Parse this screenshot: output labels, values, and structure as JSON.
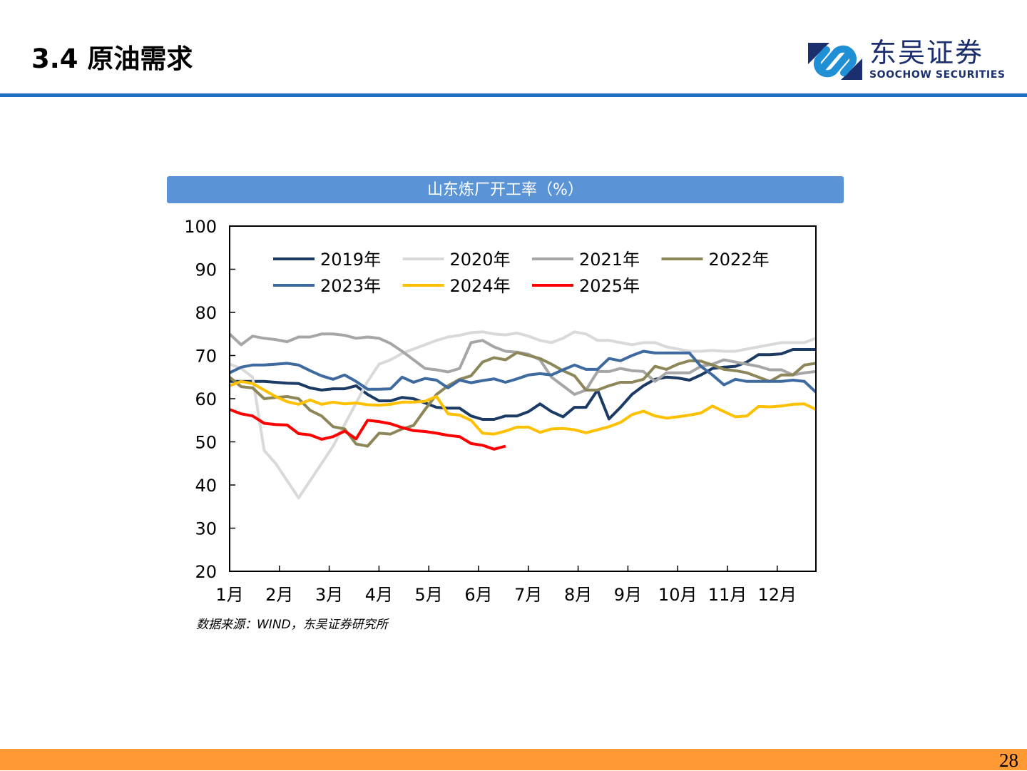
{
  "header": {
    "title": "3.4 原油需求",
    "logo_cn": "东吴证券",
    "logo_en": "SOOCHOW SECURITIES",
    "brand_color": "#1b2f6e",
    "accent_color": "#1f6fc0"
  },
  "chart_data": {
    "type": "line",
    "title": "山东炼厂开工率（%）",
    "xlabel": "",
    "ylabel": "",
    "ylim": [
      20,
      100
    ],
    "yticks": [
      "100",
      "90",
      "80",
      "70",
      "60",
      "50",
      "40",
      "30",
      "20"
    ],
    "xticks": [
      "1月",
      "2月",
      "3月",
      "4月",
      "5月",
      "6月",
      "7月",
      "8月",
      "9月",
      "10月",
      "11月",
      "12月"
    ],
    "x_unit": "week of year (1-52)",
    "legend": "top, inside plot",
    "grid": false,
    "series": [
      {
        "name": "2019年",
        "color": "#1b3a64",
        "values": [
          64,
          64,
          64,
          64,
          63.8,
          63.6,
          63.5,
          62.5,
          62,
          62.3,
          62.3,
          63,
          61,
          59.5,
          59.5,
          60.3,
          60,
          59,
          58,
          57.8,
          57.8,
          56,
          55.2,
          55.2,
          56,
          56,
          57,
          58.8,
          57,
          55.8,
          58,
          58,
          62,
          55.3,
          58,
          61,
          63,
          64.5,
          65,
          64.8,
          64.3,
          65.5,
          67,
          67.3,
          67.5,
          68.5,
          70.2,
          70.2,
          70.4,
          71.4,
          71.4,
          71.4
        ]
      },
      {
        "name": "2020年",
        "color": "#d9d9d9",
        "values": [
          68,
          67,
          65,
          48,
          45,
          41,
          37,
          41,
          45,
          49,
          54,
          59,
          64,
          68,
          69,
          70.5,
          71.5,
          72.5,
          73.5,
          74.3,
          74.7,
          75.3,
          75.5,
          75,
          74.8,
          75.2,
          74.5,
          73.5,
          73,
          74,
          75.5,
          75,
          73.5,
          73.5,
          73,
          72.5,
          73,
          73,
          72,
          71.5,
          71,
          71,
          71.2,
          71,
          71,
          71.5,
          72,
          72.5,
          73,
          73,
          73,
          74
        ]
      },
      {
        "name": "2021年",
        "color": "#a6a6a6",
        "values": [
          75,
          72.5,
          74.5,
          74,
          73.7,
          73.2,
          74.3,
          74.3,
          75,
          75,
          74.7,
          74,
          74.3,
          74,
          72.8,
          71,
          69,
          67,
          66.7,
          66.2,
          67,
          73,
          73.5,
          72,
          71,
          70.8,
          70.3,
          69,
          65,
          63,
          61,
          62,
          66.3,
          66.3,
          67,
          66.5,
          66.3,
          64,
          66,
          66,
          66,
          67.5,
          68,
          69,
          68.5,
          68,
          67.5,
          66.7,
          66.7,
          65.5,
          66,
          66.3
        ]
      },
      {
        "name": "2022年",
        "color": "#8c8658",
        "values": [
          65,
          62.8,
          62.5,
          60,
          60.3,
          60.5,
          60,
          57.3,
          56,
          53.5,
          53,
          49.5,
          49,
          52,
          51.8,
          53,
          53.8,
          57.5,
          61,
          63,
          64.5,
          65.3,
          68.5,
          69.5,
          69,
          70.7,
          70,
          69.3,
          68,
          66.5,
          65.3,
          62,
          62,
          63,
          63.8,
          63.8,
          64.5,
          67.5,
          66.8,
          68,
          68.8,
          68.7,
          67.8,
          66.8,
          66.5,
          66,
          65,
          64,
          65.5,
          65.5,
          67.8,
          68.2
        ]
      },
      {
        "name": "2023年",
        "color": "#3e6aa0",
        "values": [
          66,
          67.3,
          67.8,
          67.8,
          68,
          68.2,
          67.8,
          66.5,
          65.3,
          64.5,
          65.5,
          64,
          62.2,
          62.2,
          62.3,
          65,
          63.8,
          64.7,
          64.3,
          62.5,
          64.3,
          63.7,
          64.2,
          64.6,
          63.8,
          64.6,
          65.5,
          65.8,
          65.5,
          66.7,
          67.8,
          66.8,
          66.8,
          69.3,
          68.8,
          70,
          71,
          70.6,
          70.6,
          70.6,
          70.6,
          67.5,
          65.5,
          63.2,
          64.5,
          64,
          64,
          64,
          64,
          64.3,
          64,
          61.5
        ]
      },
      {
        "name": "2024年",
        "color": "#ffc000",
        "values": [
          63,
          64,
          63.5,
          62,
          60.5,
          59.3,
          58.7,
          59.7,
          58.7,
          59.2,
          58.8,
          59,
          58.6,
          58.5,
          58.7,
          59.2,
          59.2,
          59.4,
          60.5,
          56.5,
          56.2,
          55,
          52,
          51.8,
          52.5,
          53.4,
          53.4,
          52.2,
          53,
          53.1,
          52.8,
          52.1,
          52.8,
          53.5,
          54.5,
          56.3,
          57.1,
          56,
          55.5,
          55.8,
          56.2,
          56.7,
          58.3,
          57,
          55.8,
          56,
          58.2,
          58.1,
          58.3,
          58.7,
          58.8,
          57.5
        ]
      },
      {
        "name": "2025年",
        "color": "#ff0000",
        "values": [
          57.5,
          56.5,
          56,
          54.3,
          54,
          53.9,
          51.9,
          51.6,
          50.6,
          51.2,
          52.5,
          50.7,
          55,
          54.7,
          54.2,
          53.3,
          52.6,
          52.4,
          52,
          51.5,
          51.2,
          49.6,
          49.2,
          48.3,
          49
        ]
      }
    ]
  },
  "source": "数据来源：WIND，东吴证券研究所",
  "footer": {
    "page_number": "28",
    "bar_color": "#ff9933"
  }
}
